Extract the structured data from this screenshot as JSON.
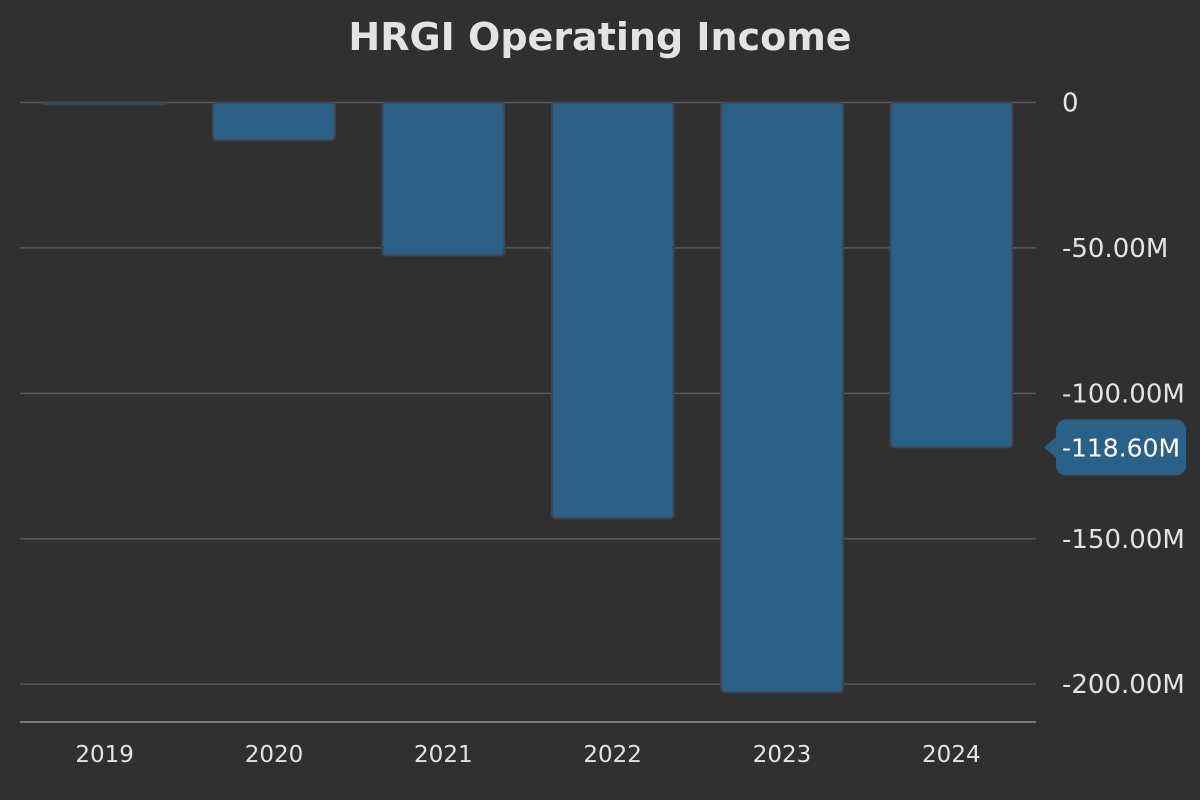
{
  "colors": {
    "background": "#303030",
    "bar_fill": "#2b6186",
    "bar_stroke": "#3c4656",
    "grid": "#5a5a5a",
    "axis": "#7a7a7a",
    "text": "#e3e3e3",
    "callout_fill": "#2b6186",
    "callout_text": "#ffffff"
  },
  "chart_data": {
    "type": "bar",
    "title": "HRGI Operating Income",
    "xlabel": "",
    "ylabel": "",
    "categories": [
      "2019",
      "2020",
      "2021",
      "2022",
      "2023",
      "2024"
    ],
    "values": [
      -0.5,
      -13,
      -52.6,
      -143,
      -202.8,
      -118.6
    ],
    "ylim": [
      -213,
      6
    ],
    "yticks": [
      0,
      -50,
      -100,
      -150,
      -200
    ],
    "ytick_labels": [
      "0",
      "-50.00M",
      "-100.00M",
      "-150.00M",
      "-200.00M"
    ],
    "y_axis_position": "right",
    "grid": true,
    "callout": {
      "category": "2024",
      "label": "-118.60M"
    }
  }
}
